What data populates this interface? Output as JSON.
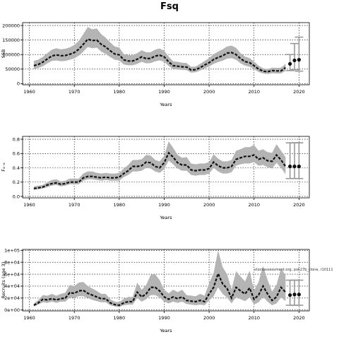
{
  "figure": {
    "title": "Fsq",
    "watermark": "stockassessment.org, pok27b_clone, r10111"
  },
  "colors": {
    "band": "#b4b4b4",
    "line": "#111111",
    "bar": "#999999",
    "grid": "#000000"
  },
  "chart_data": [
    {
      "type": "line",
      "title": "",
      "xlabel": "Years",
      "ylabel": "SSB",
      "xlim": [
        1958.5,
        2022.3
      ],
      "ylim": [
        -4000,
        210000
      ],
      "x_ticks": [
        1960,
        1970,
        1980,
        1990,
        2000,
        2010,
        2020
      ],
      "x_tick_labels": [
        "1960",
        "1970",
        "1980",
        "1990",
        "2000",
        "2010",
        "2020"
      ],
      "y_ticks": [
        0,
        50000,
        100000,
        150000,
        200000
      ],
      "y_tick_labels": [
        "0",
        "50000",
        "100000",
        "150000",
        "200000"
      ],
      "grid": true,
      "legend": "none",
      "series": [
        {
          "x": [
            1961,
            1962,
            1963,
            1964,
            1965,
            1966,
            1967,
            1968,
            1969,
            1970,
            1971,
            1972,
            1973,
            1974,
            1975,
            1976,
            1977,
            1978,
            1979,
            1980,
            1981,
            1982,
            1983,
            1984,
            1985,
            1986,
            1987,
            1988,
            1989,
            1990,
            1991,
            1992,
            1993,
            1994,
            1995,
            1996,
            1997,
            1998,
            1999,
            2000,
            2001,
            2002,
            2003,
            2004,
            2005,
            2006,
            2007,
            2008,
            2009,
            2010,
            2011,
            2012,
            2013,
            2014,
            2015,
            2016,
            2017
          ],
          "y": [
            62000,
            66000,
            74000,
            85000,
            95000,
            99000,
            96000,
            97000,
            101000,
            107000,
            118000,
            135000,
            153000,
            148000,
            150000,
            135000,
            126000,
            113000,
            102000,
            99000,
            82000,
            78000,
            78000,
            84000,
            92000,
            86000,
            87000,
            95000,
            98000,
            92000,
            75000,
            62000,
            60000,
            58000,
            57000,
            47000,
            48000,
            55000,
            64000,
            72000,
            83000,
            90000,
            96000,
            105000,
            107000,
            100000,
            86000,
            76000,
            72000,
            62000,
            50000,
            43000,
            41000,
            45000,
            44000,
            44000,
            55000
          ],
          "low": [
            50000,
            54000,
            60000,
            70000,
            78000,
            80000,
            77000,
            78000,
            82000,
            87000,
            96000,
            110000,
            126000,
            122000,
            124000,
            110000,
            102000,
            91000,
            82000,
            80000,
            66000,
            63000,
            63000,
            68000,
            75000,
            70000,
            71000,
            77000,
            80000,
            75000,
            61000,
            50000,
            49000,
            47000,
            46000,
            38000,
            39000,
            45000,
            52000,
            59000,
            68000,
            74000,
            79000,
            86000,
            88000,
            82000,
            70000,
            62000,
            58000,
            50000,
            40000,
            35000,
            33000,
            36000,
            35000,
            35000,
            44000
          ],
          "high": [
            78000,
            83000,
            92000,
            105000,
            117000,
            122000,
            118000,
            120000,
            125000,
            133000,
            147000,
            170000,
            195000,
            187000,
            190000,
            170000,
            158000,
            142000,
            128000,
            124000,
            102000,
            98000,
            98000,
            105000,
            115000,
            108000,
            108000,
            117000,
            121000,
            113000,
            93000,
            77000,
            75000,
            72000,
            71000,
            58000,
            59000,
            68000,
            78000,
            88000,
            101000,
            110000,
            118000,
            128000,
            131000,
            123000,
            105000,
            93000,
            88000,
            76000,
            62000,
            53000,
            50000,
            55000,
            54000,
            55000,
            68000
          ]
        }
      ],
      "forecast": [
        {
          "x": 2018,
          "median": 68000,
          "low": 45000,
          "high": 100000
        },
        {
          "x": 2019,
          "median": 80000,
          "low": 48000,
          "high": 138000
        },
        {
          "x": 2020,
          "median": 82000,
          "low": 43000,
          "high": 160000
        }
      ]
    },
    {
      "type": "line",
      "title": "",
      "xlabel": "Years",
      "ylabel": "F₄₋₈",
      "xlim": [
        1958.5,
        2022.3
      ],
      "ylim": [
        -0.02,
        0.84
      ],
      "x_ticks": [
        1960,
        1970,
        1980,
        1990,
        2000,
        2010,
        2020
      ],
      "x_tick_labels": [
        "1960",
        "1970",
        "1980",
        "1990",
        "2000",
        "2010",
        "2020"
      ],
      "y_ticks": [
        0,
        0.2,
        0.4,
        0.6,
        0.8
      ],
      "y_tick_labels": [
        "0.0",
        "0.2",
        "0.4",
        "0.6",
        "0.8"
      ],
      "grid": true,
      "legend": "none",
      "series": [
        {
          "x": [
            1961,
            1962,
            1963,
            1964,
            1965,
            1966,
            1967,
            1968,
            1969,
            1970,
            1971,
            1972,
            1973,
            1974,
            1975,
            1976,
            1977,
            1978,
            1979,
            1980,
            1981,
            1982,
            1983,
            1984,
            1985,
            1986,
            1987,
            1988,
            1989,
            1990,
            1991,
            1992,
            1993,
            1994,
            1995,
            1996,
            1997,
            1998,
            1999,
            2000,
            2001,
            2002,
            2003,
            2004,
            2005,
            2006,
            2007,
            2008,
            2009,
            2010,
            2011,
            2012,
            2013,
            2014,
            2015,
            2016,
            2017
          ],
          "y": [
            0.11,
            0.12,
            0.13,
            0.16,
            0.18,
            0.19,
            0.17,
            0.18,
            0.2,
            0.2,
            0.2,
            0.26,
            0.28,
            0.28,
            0.27,
            0.26,
            0.27,
            0.26,
            0.26,
            0.27,
            0.32,
            0.36,
            0.42,
            0.42,
            0.43,
            0.48,
            0.47,
            0.42,
            0.4,
            0.47,
            0.61,
            0.55,
            0.47,
            0.44,
            0.44,
            0.37,
            0.36,
            0.37,
            0.37,
            0.39,
            0.48,
            0.43,
            0.4,
            0.4,
            0.42,
            0.52,
            0.54,
            0.56,
            0.56,
            0.58,
            0.52,
            0.54,
            0.5,
            0.49,
            0.58,
            0.51,
            0.42
          ],
          "low": [
            0.09,
            0.1,
            0.11,
            0.13,
            0.15,
            0.16,
            0.14,
            0.15,
            0.17,
            0.17,
            0.17,
            0.22,
            0.24,
            0.24,
            0.23,
            0.22,
            0.23,
            0.22,
            0.22,
            0.22,
            0.27,
            0.3,
            0.35,
            0.35,
            0.36,
            0.4,
            0.39,
            0.35,
            0.33,
            0.38,
            0.5,
            0.45,
            0.39,
            0.36,
            0.36,
            0.3,
            0.29,
            0.3,
            0.3,
            0.32,
            0.4,
            0.35,
            0.32,
            0.32,
            0.34,
            0.43,
            0.45,
            0.46,
            0.46,
            0.48,
            0.43,
            0.44,
            0.41,
            0.39,
            0.47,
            0.4,
            0.31
          ],
          "high": [
            0.14,
            0.15,
            0.16,
            0.2,
            0.23,
            0.24,
            0.21,
            0.22,
            0.25,
            0.25,
            0.25,
            0.32,
            0.35,
            0.35,
            0.33,
            0.32,
            0.33,
            0.32,
            0.32,
            0.33,
            0.39,
            0.44,
            0.51,
            0.51,
            0.52,
            0.58,
            0.57,
            0.51,
            0.49,
            0.57,
            0.77,
            0.68,
            0.58,
            0.54,
            0.55,
            0.46,
            0.45,
            0.46,
            0.46,
            0.48,
            0.59,
            0.53,
            0.49,
            0.49,
            0.51,
            0.64,
            0.66,
            0.69,
            0.69,
            0.72,
            0.64,
            0.66,
            0.62,
            0.61,
            0.73,
            0.64,
            0.55
          ]
        }
      ],
      "forecast": [
        {
          "x": 2018,
          "median": 0.42,
          "low": 0.25,
          "high": 0.75
        },
        {
          "x": 2019,
          "median": 0.42,
          "low": 0.25,
          "high": 0.75
        },
        {
          "x": 2020,
          "median": 0.42,
          "low": 0.25,
          "high": 0.75
        }
      ]
    },
    {
      "type": "line",
      "title": "",
      "xlabel": "Years",
      "ylabel": "Recruits (age 3)",
      "xlim": [
        1958.5,
        2022.3
      ],
      "ylim": [
        -1500,
        101500
      ],
      "x_ticks": [
        1960,
        1970,
        1980,
        1990,
        2000,
        2010,
        2020
      ],
      "x_tick_labels": [
        "1960",
        "1970",
        "1980",
        "1990",
        "2000",
        "2010",
        "2020"
      ],
      "y_ticks": [
        0,
        20000,
        40000,
        60000,
        80000,
        100000
      ],
      "y_tick_labels": [
        "0e+00",
        "2e+04",
        "4e+04",
        "6e+04",
        "8e+04",
        "1e+05"
      ],
      "grid": true,
      "legend": "none",
      "series": [
        {
          "x": [
            1961,
            1962,
            1963,
            1964,
            1965,
            1966,
            1967,
            1968,
            1969,
            1970,
            1971,
            1972,
            1973,
            1974,
            1975,
            1976,
            1977,
            1978,
            1979,
            1980,
            1981,
            1982,
            1983,
            1984,
            1985,
            1986,
            1987,
            1988,
            1989,
            1990,
            1991,
            1992,
            1993,
            1994,
            1995,
            1996,
            1997,
            1998,
            1999,
            2000,
            2001,
            2002,
            2003,
            2004,
            2005,
            2006,
            2007,
            2008,
            2009,
            2010,
            2011,
            2012,
            2013,
            2014,
            2015,
            2016,
            2017
          ],
          "y": [
            8000,
            12000,
            18000,
            17000,
            19000,
            17000,
            19000,
            20000,
            29000,
            28000,
            32000,
            33000,
            28000,
            25000,
            22000,
            19000,
            19000,
            12000,
            9000,
            8000,
            12000,
            14000,
            14000,
            30000,
            22000,
            27000,
            38000,
            38000,
            32000,
            22000,
            18000,
            22000,
            19000,
            22000,
            16000,
            15000,
            14000,
            16000,
            14000,
            27000,
            38000,
            61000,
            44000,
            36000,
            20000,
            38000,
            32000,
            27000,
            37000,
            18000,
            25000,
            40000,
            27000,
            16000,
            22000,
            38000,
            30000
          ],
          "low": [
            6000,
            9000,
            13000,
            12000,
            14000,
            12000,
            14000,
            14000,
            21000,
            20000,
            23000,
            23000,
            20000,
            17000,
            15000,
            13000,
            13000,
            8000,
            6000,
            5000,
            8000,
            9000,
            9000,
            20000,
            14000,
            18000,
            25000,
            25000,
            21000,
            14000,
            11000,
            14000,
            12000,
            14000,
            10000,
            9000,
            8000,
            9000,
            8000,
            16000,
            23000,
            38000,
            27000,
            21000,
            11000,
            22000,
            18000,
            15000,
            21000,
            9000,
            13000,
            22000,
            14000,
            8000,
            11000,
            21000,
            15000
          ],
          "high": [
            11000,
            17000,
            25000,
            24000,
            27000,
            24000,
            27000,
            29000,
            42000,
            40000,
            46000,
            47000,
            40000,
            36000,
            32000,
            27000,
            27000,
            18000,
            14000,
            13000,
            19000,
            22000,
            22000,
            46000,
            34000,
            42000,
            59000,
            60000,
            50000,
            34000,
            28000,
            34000,
            30000,
            34000,
            25000,
            24000,
            23000,
            27000,
            24000,
            45000,
            62000,
            100000,
            72000,
            60000,
            35000,
            65000,
            56000,
            48000,
            66000,
            33000,
            47000,
            74000,
            51000,
            31000,
            42000,
            70000,
            58000
          ]
        }
      ],
      "forecast": [
        {
          "x": 2018,
          "median": 25000,
          "low": 8000,
          "high": 50000
        },
        {
          "x": 2019,
          "median": 26000,
          "low": 8000,
          "high": 50000
        },
        {
          "x": 2020,
          "median": 26000,
          "low": 8000,
          "high": 50000
        }
      ]
    }
  ]
}
